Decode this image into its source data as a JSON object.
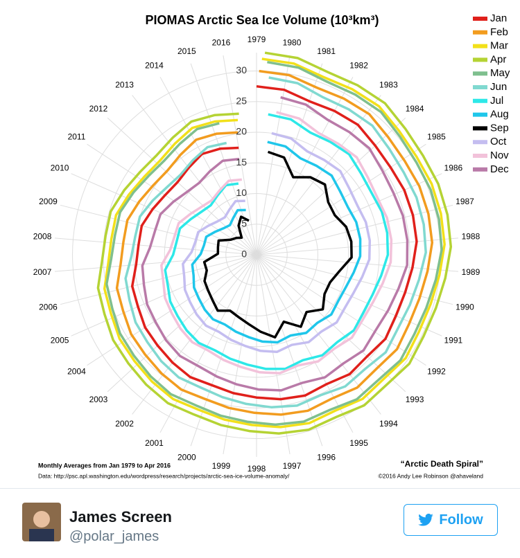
{
  "chart_data": {
    "type": "polar-line",
    "title": "PIOMAS Arctic Sea Ice Volume (10³km³)",
    "categories": [
      "1979",
      "1980",
      "1981",
      "1982",
      "1983",
      "1984",
      "1985",
      "1986",
      "1987",
      "1988",
      "1989",
      "1990",
      "1991",
      "1992",
      "1993",
      "1994",
      "1995",
      "1996",
      "1997",
      "1998",
      "1999",
      "2000",
      "2001",
      "2002",
      "2003",
      "2004",
      "2005",
      "2006",
      "2007",
      "2008",
      "2009",
      "2010",
      "2011",
      "2012",
      "2013",
      "2014",
      "2015",
      "2016"
    ],
    "rlim": [
      0,
      33
    ],
    "rticks": [
      0,
      5,
      10,
      15,
      20,
      25,
      30
    ],
    "grid": true,
    "legend": "top-right",
    "series": [
      {
        "name": "Jan",
        "color": "#e0201b",
        "values": [
          27.5,
          27.3,
          26.5,
          26.7,
          26.9,
          26.3,
          26.1,
          26.3,
          26.3,
          26.2,
          25.5,
          25,
          24.8,
          25.1,
          24.5,
          24.7,
          24,
          24.3,
          23.9,
          23.3,
          22.9,
          22.5,
          22.7,
          22.3,
          21.9,
          21.7,
          21.1,
          20.9,
          19.7,
          19.3,
          19.3,
          18.5,
          17.8,
          17.5,
          18,
          18.7,
          18.3,
          17.7
        ]
      },
      {
        "name": "Feb",
        "color": "#f29c1f",
        "values": [
          30,
          29.8,
          29,
          29.2,
          29.4,
          28.8,
          28.6,
          28.8,
          28.8,
          28.7,
          28,
          27.5,
          27.3,
          27.6,
          27,
          27.2,
          26.5,
          26.8,
          26.4,
          25.8,
          25.4,
          25,
          25.2,
          24.8,
          24.4,
          24.2,
          23.6,
          23.4,
          22.2,
          21.8,
          21.8,
          21,
          20.3,
          20,
          20.5,
          21.2,
          20.8,
          20.2
        ]
      },
      {
        "name": "Mar",
        "color": "#f2e01a",
        "values": [
          32,
          31.8,
          31,
          31.2,
          31.4,
          30.8,
          30.6,
          30.8,
          30.8,
          30.7,
          30,
          29.5,
          29.3,
          29.6,
          29,
          29.2,
          28.5,
          28.8,
          28.4,
          27.8,
          27.4,
          27,
          27.2,
          26.8,
          26.4,
          26.2,
          25.6,
          25.4,
          24.2,
          23.8,
          23.8,
          23,
          22.3,
          22,
          22.5,
          23.2,
          22.8,
          22.2
        ]
      },
      {
        "name": "Apr",
        "color": "#b5d334",
        "values": [
          33,
          32.8,
          32,
          32.2,
          32.4,
          31.8,
          31.6,
          31.8,
          31.8,
          31.7,
          31,
          30.5,
          30.3,
          30.6,
          30,
          30.2,
          29.5,
          29.8,
          29.4,
          28.8,
          28.4,
          28,
          28.2,
          27.8,
          27.4,
          27.2,
          26.6,
          26.4,
          25.2,
          24.8,
          24.8,
          24,
          23.3,
          23,
          23.5,
          24.2,
          23.8,
          23.2
        ]
      },
      {
        "name": "May",
        "color": "#7fbf8e",
        "values": [
          31.5,
          31.3,
          30.5,
          30.7,
          30.9,
          30.3,
          30.1,
          30.3,
          30.3,
          30.2,
          29.5,
          29,
          28.8,
          29.1,
          28.5,
          28.7,
          28,
          28.3,
          27.9,
          27.3,
          26.9,
          26.5,
          26.7,
          26.3,
          25.9,
          25.7,
          25.1,
          24.9,
          23.7,
          23.3,
          23.3,
          22.5,
          21.8,
          21.5,
          22,
          22.7,
          22.3,
          null
        ]
      },
      {
        "name": "Jun",
        "color": "#80d9d0",
        "values": [
          29,
          28.8,
          27.9,
          28.1,
          28.3,
          27.7,
          27.5,
          27.7,
          27.7,
          27.6,
          26.8,
          26.3,
          26,
          26.4,
          25.7,
          25.9,
          25.2,
          25.5,
          25,
          24.4,
          23.9,
          23.5,
          23.7,
          23.3,
          22.8,
          22.6,
          22,
          21.7,
          20.4,
          20,
          20,
          19.1,
          18.3,
          18,
          18.6,
          19.3,
          18.9,
          null
        ]
      },
      {
        "name": "Jul",
        "color": "#2de8e8",
        "values": [
          23,
          22.8,
          21.8,
          22,
          22.3,
          21.6,
          21.3,
          21.6,
          21.6,
          21.4,
          20.6,
          20,
          19.8,
          20.1,
          19.4,
          19.6,
          18.8,
          19.2,
          18.7,
          18,
          17.5,
          17,
          17.2,
          16.8,
          16.3,
          16,
          15.3,
          15.1,
          13.6,
          13.2,
          13.2,
          12.2,
          11.4,
          11,
          11.6,
          12.4,
          12,
          null
        ]
      },
      {
        "name": "Aug",
        "color": "#1fc6ea",
        "values": [
          18.5,
          18.3,
          17.3,
          17.5,
          17.8,
          17.1,
          16.8,
          17.1,
          17.1,
          16.9,
          16.1,
          15.5,
          15.3,
          15.6,
          14.9,
          15.1,
          14.3,
          14.7,
          14.2,
          13.5,
          13,
          12.5,
          12.7,
          12.3,
          11.8,
          11.5,
          10.8,
          10.6,
          9.1,
          8.7,
          8.7,
          7.7,
          6.9,
          6.5,
          7.1,
          7.9,
          7.5,
          null
        ]
      },
      {
        "name": "Sep",
        "color": "#000000",
        "values": [
          16.9,
          16.5,
          14,
          15.4,
          16,
          14.5,
          14.3,
          15.3,
          15.6,
          15.5,
          13.8,
          12.8,
          12.8,
          14,
          12.4,
          13.8,
          11.8,
          13.8,
          12.6,
          11.4,
          10.6,
          10.1,
          11.1,
          10.3,
          9.8,
          9.5,
          8.5,
          8.6,
          6.3,
          6.4,
          6.6,
          4.9,
          4.3,
          3.7,
          5.6,
          6.7,
          5.7,
          null
        ]
      },
      {
        "name": "Oct",
        "color": "#c4bdf0",
        "values": [
          20,
          19.8,
          18.8,
          19,
          19.3,
          18.6,
          18.3,
          18.6,
          18.6,
          18.4,
          17.6,
          17,
          16.8,
          17.1,
          16.4,
          16.6,
          15.8,
          16.2,
          15.7,
          15,
          14.5,
          14,
          14.2,
          13.8,
          13.3,
          13,
          12.3,
          12.1,
          10.6,
          10.2,
          10.2,
          9.2,
          8.4,
          8,
          8.6,
          9.4,
          9,
          null
        ]
      },
      {
        "name": "Nov",
        "color": "#f2c2da",
        "values": [
          23.5,
          23.3,
          22.3,
          22.5,
          22.8,
          22.1,
          21.8,
          22.1,
          22.1,
          21.9,
          21.1,
          20.5,
          20.3,
          20.6,
          19.9,
          20.1,
          19.3,
          19.7,
          19.2,
          18.5,
          18,
          17.5,
          17.7,
          17.3,
          16.8,
          16.5,
          15.8,
          15.6,
          14.1,
          13.7,
          13.7,
          12.7,
          11.9,
          11.5,
          12.1,
          12.9,
          12.5,
          null
        ]
      },
      {
        "name": "Dec",
        "color": "#b97aa8",
        "values": [
          26,
          25.8,
          24.9,
          25.1,
          25.3,
          24.7,
          24.5,
          24.7,
          24.7,
          24.6,
          23.8,
          23.3,
          23,
          23.4,
          22.7,
          22.9,
          22.2,
          22.5,
          22,
          21.4,
          20.9,
          20.5,
          20.7,
          20.3,
          19.8,
          19.6,
          19,
          18.7,
          17.4,
          17,
          17,
          16.1,
          15.3,
          15,
          15.6,
          16.3,
          15.9,
          null
        ]
      }
    ],
    "annotations": [
      "Monthly Averages from Jan 1979 to Apr 2016",
      "Data: http://psc.apl.washington.edu/wordpress/research/projects/arctic-sea-ice-volume-anomaly/",
      "“Arctic Death Spiral”",
      "©2016 Andy Lee Robinson @ahaveland"
    ]
  },
  "tweet": {
    "name": "James Screen",
    "handle": "@polar_james",
    "button": "Follow"
  }
}
